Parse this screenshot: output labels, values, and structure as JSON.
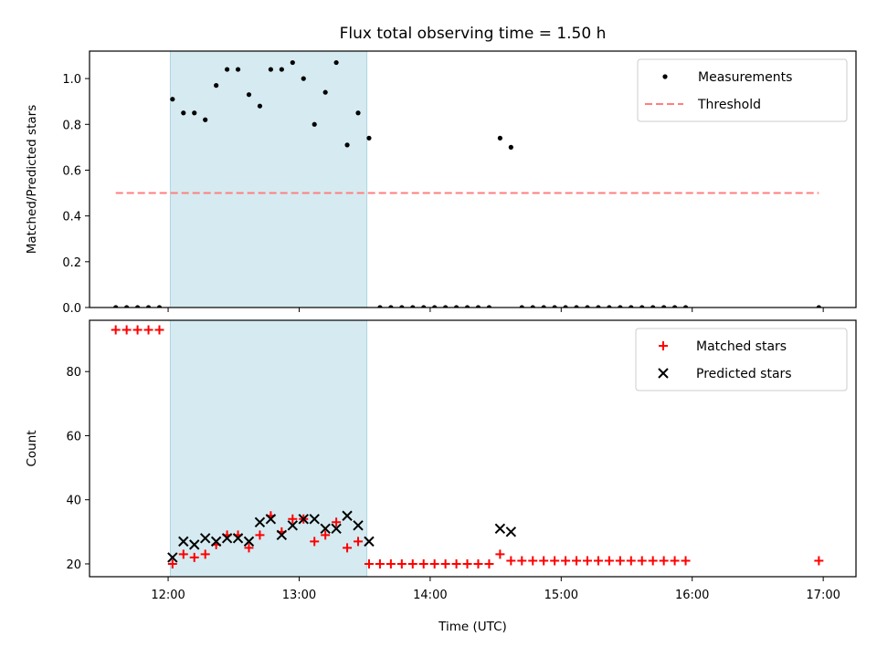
{
  "chart_data": [
    {
      "type": "scatter",
      "title": "Flux total observing time = 1.50 h",
      "xlabel": "",
      "ylabel": "Matched/Predicted stars",
      "ylim": [
        0,
        1.12
      ],
      "xlim": [
        "11:24",
        "17:15"
      ],
      "yticks": [
        "0.0",
        "0.2",
        "0.4",
        "0.6",
        "0.8",
        "1.0"
      ],
      "grid": false,
      "legend_position": "top-right",
      "highlight_span": {
        "start": "12:01",
        "end": "13:31",
        "color": "#d5ebf1"
      },
      "series": [
        {
          "name": "Measurements",
          "color": "#000000",
          "marker": "dot",
          "points": [
            [
              "11:36",
              0.0
            ],
            [
              "11:41",
              0.0
            ],
            [
              "11:46",
              0.0
            ],
            [
              "11:51",
              0.0
            ],
            [
              "11:56",
              0.0
            ],
            [
              "12:02",
              0.91
            ],
            [
              "12:07",
              0.85
            ],
            [
              "12:12",
              0.85
            ],
            [
              "12:17",
              0.82
            ],
            [
              "12:22",
              0.97
            ],
            [
              "12:27",
              1.04
            ],
            [
              "12:32",
              1.04
            ],
            [
              "12:37",
              0.93
            ],
            [
              "12:42",
              0.88
            ],
            [
              "12:47",
              1.04
            ],
            [
              "12:52",
              1.04
            ],
            [
              "12:57",
              1.07
            ],
            [
              "13:02",
              1.0
            ],
            [
              "13:07",
              0.8
            ],
            [
              "13:12",
              0.94
            ],
            [
              "13:17",
              1.07
            ],
            [
              "13:22",
              0.71
            ],
            [
              "13:27",
              0.85
            ],
            [
              "13:32",
              0.74
            ],
            [
              "13:37",
              0.0
            ],
            [
              "13:42",
              0.0
            ],
            [
              "13:47",
              0.0
            ],
            [
              "13:52",
              0.0
            ],
            [
              "13:57",
              0.0
            ],
            [
              "14:02",
              0.0
            ],
            [
              "14:07",
              0.0
            ],
            [
              "14:12",
              0.0
            ],
            [
              "14:17",
              0.0
            ],
            [
              "14:22",
              0.0
            ],
            [
              "14:27",
              0.0
            ],
            [
              "14:32",
              0.74
            ],
            [
              "14:37",
              0.7
            ],
            [
              "14:42",
              0.0
            ],
            [
              "14:47",
              0.0
            ],
            [
              "14:52",
              0.0
            ],
            [
              "14:57",
              0.0
            ],
            [
              "15:02",
              0.0
            ],
            [
              "15:07",
              0.0
            ],
            [
              "15:12",
              0.0
            ],
            [
              "15:17",
              0.0
            ],
            [
              "15:22",
              0.0
            ],
            [
              "15:27",
              0.0
            ],
            [
              "15:32",
              0.0
            ],
            [
              "15:37",
              0.0
            ],
            [
              "15:42",
              0.0
            ],
            [
              "15:47",
              0.0
            ],
            [
              "15:52",
              0.0
            ],
            [
              "15:57",
              0.0
            ],
            [
              "16:58",
              0.0
            ]
          ]
        },
        {
          "name": "Threshold",
          "color": "#ff7f7f",
          "line_style": "dashed",
          "points": [
            [
              "11:36",
              0.5
            ],
            [
              "16:58",
              0.5
            ]
          ]
        }
      ]
    },
    {
      "type": "scatter",
      "title": "",
      "xlabel": "Time (UTC)",
      "ylabel": "Count",
      "ylim": [
        16,
        96
      ],
      "xlim": [
        "11:24",
        "17:15"
      ],
      "xticks": [
        "12:00",
        "13:00",
        "14:00",
        "15:00",
        "16:00",
        "17:00"
      ],
      "yticks": [
        "20",
        "40",
        "60",
        "80"
      ],
      "grid": false,
      "legend_position": "top-right",
      "highlight_span": {
        "start": "12:01",
        "end": "13:31",
        "color": "#d5ebf1"
      },
      "series": [
        {
          "name": "Matched stars",
          "color": "#ff0000",
          "marker": "plus",
          "points": [
            [
              "11:36",
              93
            ],
            [
              "11:41",
              93
            ],
            [
              "11:46",
              93
            ],
            [
              "11:51",
              93
            ],
            [
              "11:56",
              93
            ],
            [
              "12:02",
              20
            ],
            [
              "12:07",
              23
            ],
            [
              "12:12",
              22
            ],
            [
              "12:17",
              23
            ],
            [
              "12:22",
              26
            ],
            [
              "12:27",
              29
            ],
            [
              "12:32",
              29
            ],
            [
              "12:37",
              25
            ],
            [
              "12:42",
              29
            ],
            [
              "12:47",
              35
            ],
            [
              "12:52",
              30
            ],
            [
              "12:57",
              34
            ],
            [
              "13:02",
              34
            ],
            [
              "13:07",
              27
            ],
            [
              "13:12",
              29
            ],
            [
              "13:17",
              33
            ],
            [
              "13:22",
              25
            ],
            [
              "13:27",
              27
            ],
            [
              "13:32",
              20
            ],
            [
              "13:37",
              20
            ],
            [
              "13:42",
              20
            ],
            [
              "13:47",
              20
            ],
            [
              "13:52",
              20
            ],
            [
              "13:57",
              20
            ],
            [
              "14:02",
              20
            ],
            [
              "14:07",
              20
            ],
            [
              "14:12",
              20
            ],
            [
              "14:17",
              20
            ],
            [
              "14:22",
              20
            ],
            [
              "14:27",
              20
            ],
            [
              "14:32",
              23
            ],
            [
              "14:37",
              21
            ],
            [
              "14:42",
              21
            ],
            [
              "14:47",
              21
            ],
            [
              "14:52",
              21
            ],
            [
              "14:57",
              21
            ],
            [
              "15:02",
              21
            ],
            [
              "15:07",
              21
            ],
            [
              "15:12",
              21
            ],
            [
              "15:17",
              21
            ],
            [
              "15:22",
              21
            ],
            [
              "15:27",
              21
            ],
            [
              "15:32",
              21
            ],
            [
              "15:37",
              21
            ],
            [
              "15:42",
              21
            ],
            [
              "15:47",
              21
            ],
            [
              "15:52",
              21
            ],
            [
              "15:57",
              21
            ],
            [
              "16:58",
              21
            ]
          ]
        },
        {
          "name": "Predicted stars",
          "color": "#000000",
          "marker": "x",
          "points": [
            [
              "12:02",
              22
            ],
            [
              "12:07",
              27
            ],
            [
              "12:12",
              26
            ],
            [
              "12:17",
              28
            ],
            [
              "12:22",
              27
            ],
            [
              "12:27",
              28
            ],
            [
              "12:32",
              28
            ],
            [
              "12:37",
              27
            ],
            [
              "12:42",
              33
            ],
            [
              "12:47",
              34
            ],
            [
              "12:52",
              29
            ],
            [
              "12:57",
              32
            ],
            [
              "13:02",
              34
            ],
            [
              "13:07",
              34
            ],
            [
              "13:12",
              31
            ],
            [
              "13:17",
              31
            ],
            [
              "13:22",
              35
            ],
            [
              "13:27",
              32
            ],
            [
              "13:32",
              27
            ],
            [
              "14:32",
              31
            ],
            [
              "14:37",
              30
            ]
          ]
        }
      ]
    }
  ]
}
